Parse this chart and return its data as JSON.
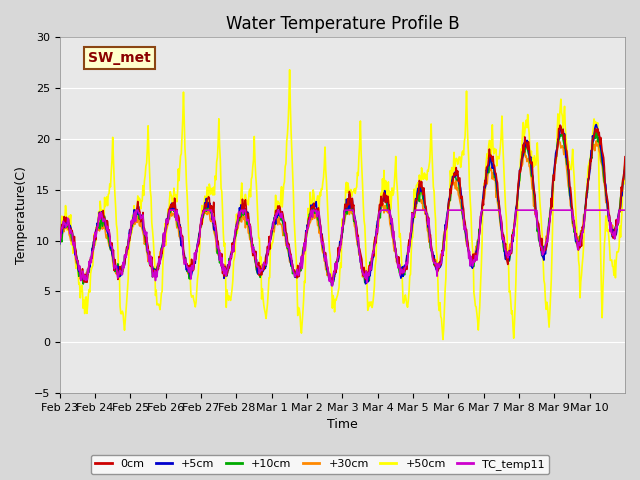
{
  "title": "Water Temperature Profile B",
  "xlabel": "Time",
  "ylabel": "Temperature(C)",
  "ylim": [
    -5,
    30
  ],
  "yticks": [
    -5,
    0,
    5,
    10,
    15,
    20,
    25,
    30
  ],
  "fig_bg_color": "#d8d8d8",
  "plot_bg_color": "#e8e8e8",
  "annotation_text": "SW_met",
  "annotation_color": "#8b0000",
  "annotation_bg": "#ffffcc",
  "annotation_border": "#8b4513",
  "series_colors": {
    "0cm": "#cc0000",
    "+5cm": "#0000cc",
    "+10cm": "#00aa00",
    "+30cm": "#ff8800",
    "+50cm": "#ffff00",
    "TC_temp11": "#cc00cc"
  },
  "line_width": 1.2,
  "tick_labels": [
    "Feb 23",
    "Feb 24",
    "Feb 25",
    "Feb 26",
    "Feb 27",
    "Feb 28",
    "Mar 1",
    "Mar 2",
    "Mar 3",
    "Mar 4",
    "Mar 5",
    "Mar 6",
    "Mar 7",
    "Mar 8",
    "Mar 9",
    "Mar 10"
  ],
  "n_days": 16,
  "pts_per_day": 48
}
